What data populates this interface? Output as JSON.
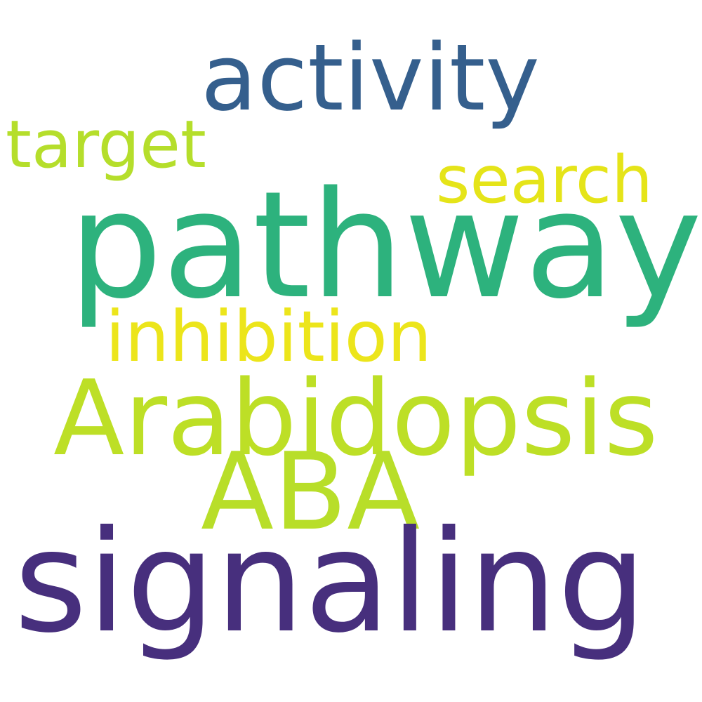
{
  "words": {
    "activity": {
      "text": "activity",
      "color": "#355f8d"
    },
    "target": {
      "text": "target",
      "color": "#b5de2b"
    },
    "search": {
      "text": "search",
      "color": "#e5e419"
    },
    "pathway": {
      "text": "pathway",
      "color": "#2db27d"
    },
    "inhibition": {
      "text": "inhibition",
      "color": "#ece51b"
    },
    "arabidopsis": {
      "text": "Arabidopsis",
      "color": "#bddf26"
    },
    "aba": {
      "text": "ABA",
      "color": "#b8de29"
    },
    "signaling": {
      "text": "signaling",
      "color": "#472f7d"
    }
  }
}
